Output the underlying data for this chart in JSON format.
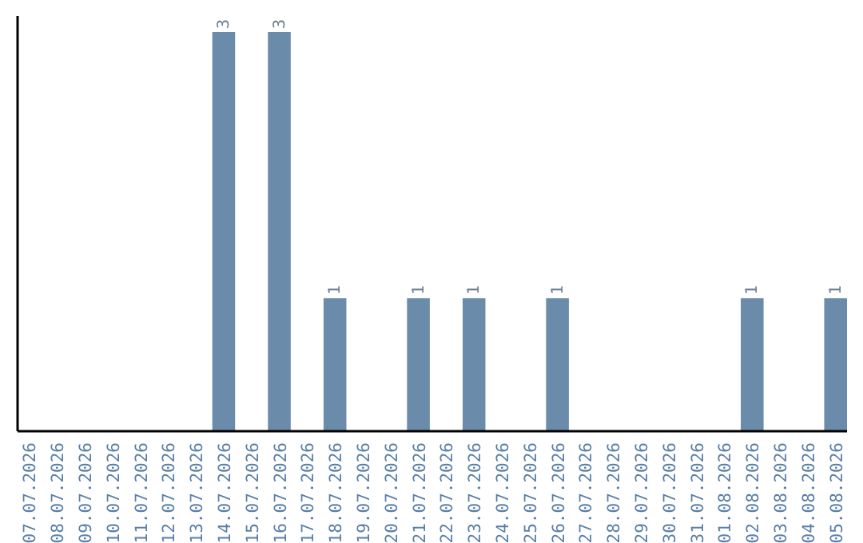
{
  "chart_data": {
    "type": "bar",
    "categories": [
      "07.07.2026",
      "08.07.2026",
      "09.07.2026",
      "10.07.2026",
      "11.07.2026",
      "12.07.2026",
      "13.07.2026",
      "14.07.2026",
      "15.07.2026",
      "16.07.2026",
      "17.07.2026",
      "18.07.2026",
      "19.07.2026",
      "20.07.2026",
      "21.07.2026",
      "22.07.2026",
      "23.07.2026",
      "24.07.2026",
      "25.07.2026",
      "26.07.2026",
      "27.07.2026",
      "28.07.2026",
      "29.07.2026",
      "30.07.2026",
      "31.07.2026",
      "01.08.2026",
      "02.08.2026",
      "03.08.2026",
      "04.08.2026",
      "05.08.2026"
    ],
    "values": [
      0,
      0,
      0,
      0,
      0,
      0,
      0,
      3,
      0,
      3,
      0,
      1,
      0,
      0,
      1,
      0,
      1,
      0,
      0,
      1,
      0,
      0,
      0,
      0,
      0,
      0,
      1,
      0,
      0,
      1
    ],
    "value_labels": [
      null,
      null,
      null,
      null,
      null,
      null,
      null,
      "3",
      null,
      "3",
      null,
      "1",
      null,
      null,
      "1",
      null,
      "1",
      null,
      null,
      "1",
      null,
      null,
      null,
      null,
      null,
      null,
      "1",
      null,
      null,
      "1"
    ],
    "color": "#6a8caa"
  }
}
